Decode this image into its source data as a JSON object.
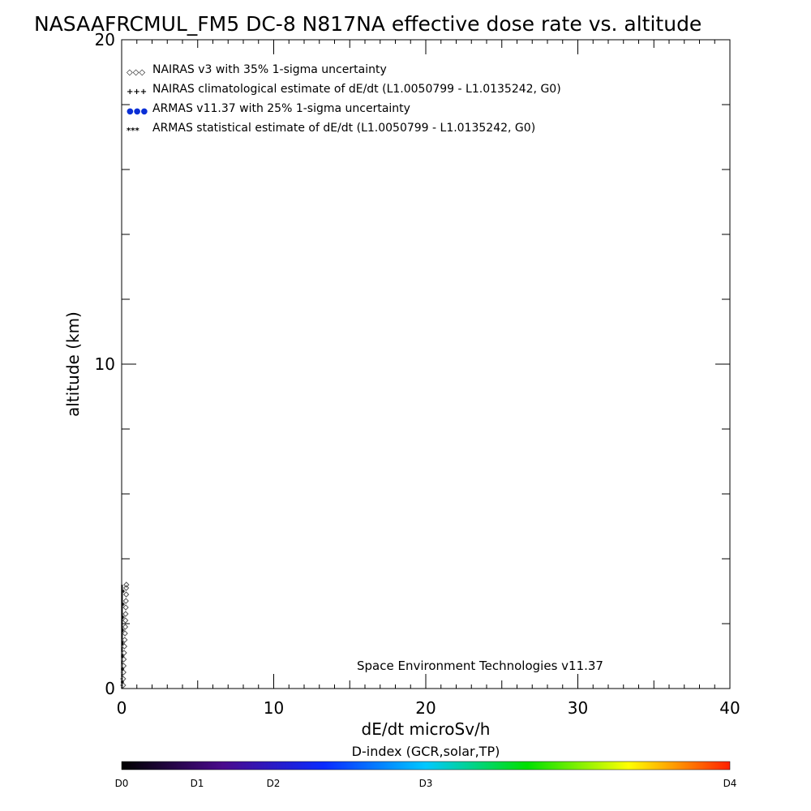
{
  "chart_data": {
    "type": "scatter",
    "title": "NASAAFRCMUL_FM5 DC-8   N817NA effective dose rate vs. altitude",
    "xlabel": "dE/dt microSv/h",
    "ylabel": "altitude (km)",
    "xlim": [
      0,
      40
    ],
    "ylim": [
      0,
      20
    ],
    "x_ticks": [
      {
        "value": 0,
        "label": "0"
      },
      {
        "value": 10,
        "label": "10"
      },
      {
        "value": 20,
        "label": "20"
      },
      {
        "value": 30,
        "label": "30"
      },
      {
        "value": 40,
        "label": "40"
      }
    ],
    "y_ticks": [
      {
        "value": 0,
        "label": "0"
      },
      {
        "value": 10,
        "label": "10"
      },
      {
        "value": 20,
        "label": "20"
      }
    ],
    "legend": [
      {
        "marker": "◇◇◇",
        "label": "NAIRAS v3 with 35% 1-sigma uncertainty",
        "color": "#000000"
      },
      {
        "marker": "+++",
        "label": "NAIRAS climatological estimate of dE/dt (L1.0050799 - L1.0135242, G0)",
        "color": "#000000"
      },
      {
        "marker": "●●●",
        "label": "ARMAS v11.37 with 25% 1-sigma uncertainty",
        "color": "#0a2fd6"
      },
      {
        "marker": "***",
        "label": "ARMAS statistical estimate of dE/dt (L1.0050799 - L1.0135242, G0)",
        "color": "#000000"
      }
    ],
    "legend_position": "top-left",
    "annotation": "Space Environment Technologies v11.37",
    "series": [
      {
        "name": "NAIRAS v3 with 35% 1-sigma uncertainty",
        "marker": "diamond",
        "points": [
          {
            "x": 0.1,
            "y": 0.1
          },
          {
            "x": 0.1,
            "y": 0.3
          },
          {
            "x": 0.12,
            "y": 0.5
          },
          {
            "x": 0.13,
            "y": 0.7
          },
          {
            "x": 0.14,
            "y": 0.9
          },
          {
            "x": 0.16,
            "y": 1.1
          },
          {
            "x": 0.18,
            "y": 1.3
          },
          {
            "x": 0.2,
            "y": 1.5
          },
          {
            "x": 0.22,
            "y": 1.7
          },
          {
            "x": 0.24,
            "y": 1.9
          },
          {
            "x": 0.25,
            "y": 2.1
          },
          {
            "x": 0.26,
            "y": 2.3
          },
          {
            "x": 0.27,
            "y": 2.5
          },
          {
            "x": 0.28,
            "y": 2.7
          },
          {
            "x": 0.3,
            "y": 2.9
          },
          {
            "x": 0.3,
            "y": 3.1
          },
          {
            "x": 0.31,
            "y": 3.2
          }
        ]
      },
      {
        "name": "NAIRAS climatological estimate of dE/dt (L1.0050799 - L1.0135242, G0)",
        "marker": "plus",
        "points": [
          {
            "x": 0.05,
            "y": 0.2
          },
          {
            "x": 0.06,
            "y": 0.6
          },
          {
            "x": 0.07,
            "y": 1.0
          },
          {
            "x": 0.08,
            "y": 1.4
          },
          {
            "x": 0.09,
            "y": 1.8
          },
          {
            "x": 0.1,
            "y": 2.2
          },
          {
            "x": 0.11,
            "y": 2.6
          },
          {
            "x": 0.12,
            "y": 3.0
          }
        ]
      }
    ]
  },
  "colorbar": {
    "title": "D-index (GCR,solar,TP)",
    "labels": [
      {
        "value": 0,
        "label": "D0"
      },
      {
        "value": 1,
        "label": "D1"
      },
      {
        "value": 2,
        "label": "D2"
      },
      {
        "value": 3,
        "label": "D3"
      },
      {
        "value": 4,
        "label": "D4"
      }
    ],
    "colors": [
      "#000000",
      "#4a0a8c",
      "#0a2bff",
      "#00c8ff",
      "#00e000",
      "#ffff00",
      "#ff2000"
    ]
  }
}
